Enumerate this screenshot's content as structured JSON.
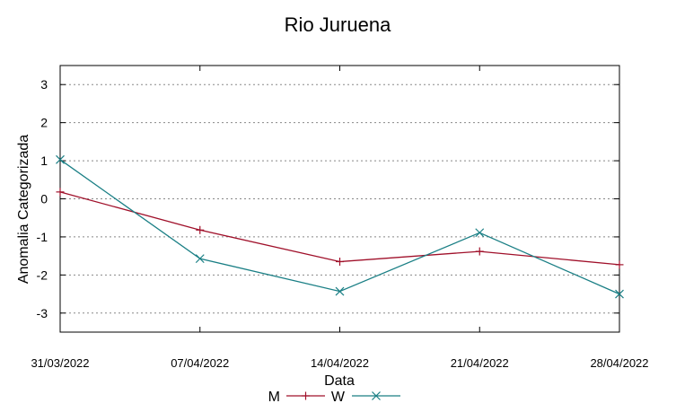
{
  "chart_data": {
    "type": "line",
    "title": "Rio Juruena",
    "xlabel": "Data",
    "ylabel": "Anomalia Categorizada",
    "categories": [
      "31/03/2022",
      "07/04/2022",
      "14/04/2022",
      "21/04/2022",
      "28/04/2022"
    ],
    "y_ticks": [
      "3",
      "2",
      "1",
      "0",
      "-1",
      "-2",
      "-3"
    ],
    "ylim": [
      -3.5,
      3.5
    ],
    "grid": "horizontal dotted",
    "legend_position": "bottom-center",
    "series": [
      {
        "name": "M",
        "color": "#a0102a",
        "marker": "plus",
        "points": [
          [
            0,
            0.18
          ],
          [
            7,
            -0.82
          ],
          [
            14,
            -1.65
          ],
          [
            21,
            -1.38
          ],
          [
            28,
            -1.73
          ]
        ]
      },
      {
        "name": "W",
        "color": "#1a7f85",
        "marker": "cross",
        "points": [
          [
            0,
            1.03
          ],
          [
            7,
            -1.57
          ],
          [
            14,
            -2.43
          ],
          [
            21,
            -0.89
          ],
          [
            28,
            -2.5
          ]
        ]
      }
    ]
  }
}
